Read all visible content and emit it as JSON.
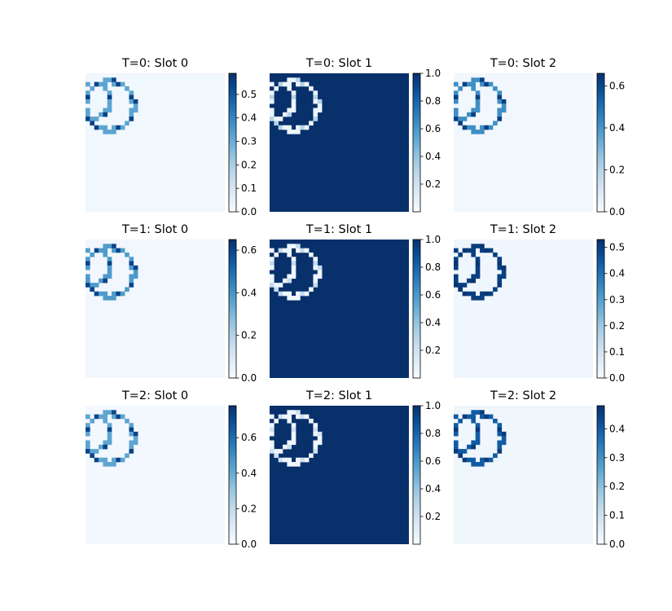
{
  "chart_data": {
    "type": "heatmap",
    "colormap": "Blues",
    "grid": false,
    "panels": [
      {
        "title": "T=0: Slot 0",
        "vmin": 0.0,
        "vmax": 0.59,
        "ticks": [
          "0.0",
          "0.1",
          "0.2",
          "0.3",
          "0.4",
          "0.5"
        ],
        "tick_values": [
          0,
          0.1,
          0.2,
          0.3,
          0.4,
          0.5
        ],
        "background_value": 0.02,
        "shape_value": 0.32,
        "edge_value": 0.55,
        "inverted": false
      },
      {
        "title": "T=0: Slot 1",
        "vmin": 0.0,
        "vmax": 1.0,
        "ticks": [
          "0.2",
          "0.4",
          "0.6",
          "0.8",
          "1.0"
        ],
        "tick_values": [
          0.2,
          0.4,
          0.6,
          0.8,
          1.0
        ],
        "background_value": 1.0,
        "shape_value": 0.05,
        "edge_value": 0.3,
        "inverted": true
      },
      {
        "title": "T=0: Slot 2",
        "vmin": 0.0,
        "vmax": 0.66,
        "ticks": [
          "0.0",
          "0.2",
          "0.4",
          "0.6"
        ],
        "tick_values": [
          0,
          0.2,
          0.4,
          0.6
        ],
        "background_value": 0.02,
        "shape_value": 0.42,
        "edge_value": 0.62,
        "inverted": false
      },
      {
        "title": "T=1: Slot 0",
        "vmin": 0.0,
        "vmax": 0.65,
        "ticks": [
          "0.0",
          "0.2",
          "0.4",
          "0.6"
        ],
        "tick_values": [
          0,
          0.2,
          0.4,
          0.6
        ],
        "background_value": 0.02,
        "shape_value": 0.38,
        "edge_value": 0.6,
        "inverted": false
      },
      {
        "title": "T=1: Slot 1",
        "vmin": 0.0,
        "vmax": 1.0,
        "ticks": [
          "0.2",
          "0.4",
          "0.6",
          "0.8",
          "1.0"
        ],
        "tick_values": [
          0.2,
          0.4,
          0.6,
          0.8,
          1.0
        ],
        "background_value": 1.0,
        "shape_value": 0.04,
        "edge_value": 0.25,
        "inverted": true
      },
      {
        "title": "T=1: Slot 2",
        "vmin": 0.0,
        "vmax": 0.53,
        "ticks": [
          "0.0",
          "0.1",
          "0.2",
          "0.3",
          "0.4",
          "0.5"
        ],
        "tick_values": [
          0,
          0.1,
          0.2,
          0.3,
          0.4,
          0.5
        ],
        "background_value": 0.02,
        "shape_value": 0.5,
        "edge_value": 0.52,
        "inverted": false
      },
      {
        "title": "T=2: Slot 0",
        "vmin": 0.0,
        "vmax": 0.78,
        "ticks": [
          "0.0",
          "0.2",
          "0.4",
          "0.6"
        ],
        "tick_values": [
          0,
          0.2,
          0.4,
          0.6
        ],
        "background_value": 0.02,
        "shape_value": 0.42,
        "edge_value": 0.72,
        "inverted": false
      },
      {
        "title": "T=2: Slot 1",
        "vmin": 0.0,
        "vmax": 1.0,
        "ticks": [
          "0.2",
          "0.4",
          "0.6",
          "0.8",
          "1.0"
        ],
        "tick_values": [
          0.2,
          0.4,
          0.6,
          0.8,
          1.0
        ],
        "background_value": 1.0,
        "shape_value": 0.04,
        "edge_value": 0.2,
        "inverted": true
      },
      {
        "title": "T=2: Slot 2",
        "vmin": 0.0,
        "vmax": 0.48,
        "ticks": [
          "0.0",
          "0.1",
          "0.2",
          "0.3",
          "0.4"
        ],
        "tick_values": [
          0,
          0.1,
          0.2,
          0.3,
          0.4
        ],
        "background_value": 0.02,
        "shape_value": 0.4,
        "edge_value": 0.46,
        "inverted": false
      }
    ]
  }
}
